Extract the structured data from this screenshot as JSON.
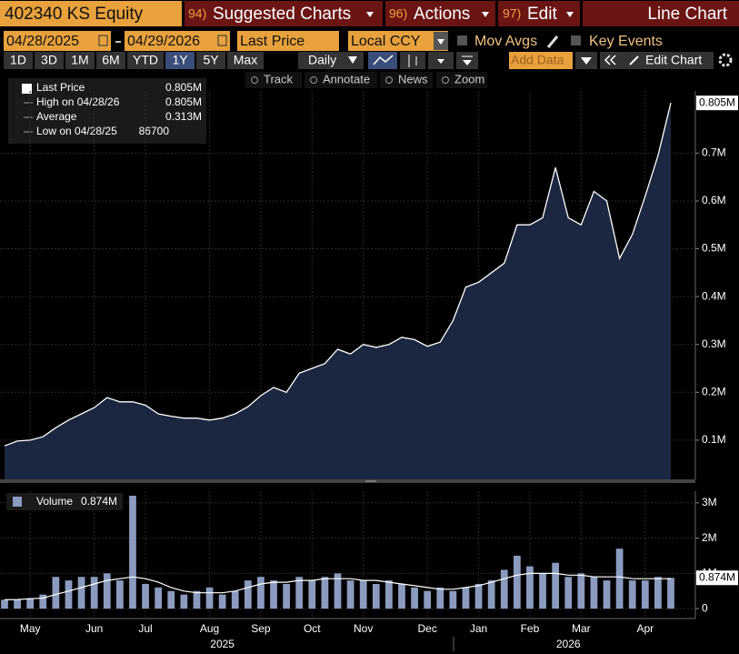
{
  "ui": {
    "security": "402340 KS Equity",
    "menu": [
      {
        "num": "94)",
        "label": "Suggested Charts"
      },
      {
        "num": "96)",
        "label": "Actions"
      },
      {
        "num": "97)",
        "label": "Edit"
      }
    ],
    "chart_kind": "Line Chart",
    "date_from": "04/28/2025",
    "date_to": "04/29/2026",
    "field": "Last Price",
    "currency": "Local CCY",
    "mov_avgs": "Mov Avgs",
    "key_events": "Key Events",
    "periods": [
      "1D",
      "3D",
      "1M",
      "6M",
      "YTD",
      "1Y",
      "5Y",
      "Max"
    ],
    "active_period": "1Y",
    "frequency": "Daily",
    "add_data": "Add Data",
    "edit_chart": "Edit Chart",
    "tools": [
      "Track",
      "Annotate",
      "News",
      "Zoom"
    ],
    "legend": [
      {
        "label": "Last Price",
        "value": "0.805M"
      },
      {
        "label": "High on 04/28/26",
        "value": "0.805M"
      },
      {
        "label": "Average",
        "value": "0.313M"
      },
      {
        "label": "Low on 04/28/25",
        "value": "86700"
      }
    ]
  },
  "chart_data": [
    {
      "type": "area",
      "series": [
        {
          "name": "Last Price",
          "color": "#ffffff",
          "fill": "#1b2740",
          "values": [
            0.088,
            0.098,
            0.1,
            0.107,
            0.126,
            0.142,
            0.155,
            0.168,
            0.189,
            0.18,
            0.18,
            0.173,
            0.155,
            0.15,
            0.146,
            0.146,
            0.142,
            0.146,
            0.155,
            0.17,
            0.193,
            0.21,
            0.2,
            0.24,
            0.25,
            0.26,
            0.29,
            0.28,
            0.3,
            0.294,
            0.3,
            0.315,
            0.31,
            0.296,
            0.305,
            0.35,
            0.42,
            0.43,
            0.45,
            0.47,
            0.55,
            0.55,
            0.565,
            0.67,
            0.565,
            0.55,
            0.62,
            0.6,
            0.48,
            0.53,
            0.61,
            0.695,
            0.805
          ],
          "value_labels": [
            null,
            null,
            null,
            null,
            null,
            null,
            null,
            null,
            null,
            null,
            null,
            null,
            null,
            null,
            null,
            null,
            null,
            null,
            null,
            null,
            null,
            null,
            null,
            null,
            null,
            null,
            null,
            null,
            null,
            null,
            null,
            null,
            null,
            null,
            null,
            null,
            null,
            null,
            null,
            null,
            null,
            null,
            null,
            null,
            null,
            null,
            null,
            null,
            null,
            null,
            null,
            null,
            "0.805M"
          ]
        }
      ],
      "ylim": [
        0.018,
        0.83
      ],
      "yticks": [
        {
          "value": 0.1,
          "label": "0.1M"
        },
        {
          "value": 0.2,
          "label": "0.2M"
        },
        {
          "value": 0.3,
          "label": "0.3M"
        },
        {
          "value": 0.4,
          "label": "0.4M"
        },
        {
          "value": 0.5,
          "label": "0.5M"
        },
        {
          "value": 0.6,
          "label": "0.6M"
        },
        {
          "value": 0.7,
          "label": "0.7M"
        }
      ],
      "grid": true
    },
    {
      "type": "bar",
      "categories": [
        null,
        null,
        "May",
        null,
        null,
        null,
        null,
        "Jun",
        null,
        null,
        null,
        "Jul",
        null,
        null,
        null,
        null,
        "Aug",
        null,
        null,
        null,
        "Sep",
        null,
        null,
        null,
        "Oct",
        null,
        null,
        null,
        "Nov",
        null,
        null,
        null,
        null,
        "Dec",
        null,
        null,
        null,
        "Jan",
        null,
        null,
        null,
        "Feb",
        null,
        null,
        null,
        "Mar",
        null,
        null,
        null,
        null,
        "Apr",
        null,
        null
      ],
      "category_years": [
        null,
        null,
        null,
        null,
        null,
        null,
        null,
        null,
        null,
        null,
        null,
        null,
        null,
        null,
        null,
        null,
        null,
        "2025",
        null,
        null,
        null,
        null,
        null,
        null,
        null,
        null,
        null,
        null,
        null,
        null,
        null,
        null,
        null,
        null,
        null,
        null,
        null,
        null,
        null,
        null,
        null,
        null,
        null,
        null,
        "2026",
        null,
        null,
        null,
        null,
        null,
        null,
        null,
        null
      ],
      "series": [
        {
          "name": "Volume",
          "type": "bar",
          "color": "#8b9bbf",
          "values": [
            0.25,
            0.25,
            0.3,
            0.4,
            0.9,
            0.8,
            0.9,
            0.9,
            1.0,
            0.8,
            3.2,
            0.7,
            0.6,
            0.5,
            0.4,
            0.5,
            0.6,
            0.4,
            0.5,
            0.8,
            0.9,
            0.8,
            0.7,
            0.9,
            0.8,
            0.9,
            1.0,
            0.8,
            0.8,
            0.7,
            0.8,
            0.7,
            0.6,
            0.5,
            0.6,
            0.5,
            0.6,
            0.7,
            0.8,
            1.1,
            1.5,
            1.2,
            1.0,
            1.3,
            0.9,
            1.0,
            0.9,
            0.8,
            1.7,
            0.8,
            0.8,
            0.9,
            0.874
          ],
          "value_labels": [
            null,
            null,
            null,
            null,
            null,
            null,
            null,
            null,
            null,
            null,
            null,
            null,
            null,
            null,
            null,
            null,
            null,
            null,
            null,
            null,
            null,
            null,
            null,
            null,
            null,
            null,
            null,
            null,
            null,
            null,
            null,
            null,
            null,
            null,
            null,
            null,
            null,
            null,
            null,
            null,
            null,
            null,
            null,
            null,
            null,
            null,
            null,
            null,
            null,
            null,
            null,
            null,
            "0.874M"
          ]
        },
        {
          "type": "line",
          "color": "#ffffff",
          "values": [
            0.25,
            0.26,
            0.28,
            0.3,
            0.4,
            0.5,
            0.6,
            0.7,
            0.8,
            0.85,
            0.9,
            0.85,
            0.75,
            0.6,
            0.5,
            0.45,
            0.45,
            0.45,
            0.5,
            0.6,
            0.7,
            0.75,
            0.75,
            0.8,
            0.8,
            0.85,
            0.85,
            0.85,
            0.8,
            0.8,
            0.75,
            0.7,
            0.65,
            0.6,
            0.55,
            0.55,
            0.6,
            0.65,
            0.75,
            0.85,
            0.95,
            1.0,
            1.0,
            1.0,
            0.95,
            0.95,
            0.9,
            0.9,
            0.9,
            0.85,
            0.85,
            0.85,
            0.85
          ]
        }
      ],
      "ylim": [
        -0.28,
        3.33
      ],
      "yticks": [
        0,
        {
          "value": 1,
          "label": "1M"
        },
        {
          "value": 2,
          "label": "2M"
        },
        {
          "value": 3,
          "label": "3M"
        }
      ],
      "grid": true
    }
  ]
}
